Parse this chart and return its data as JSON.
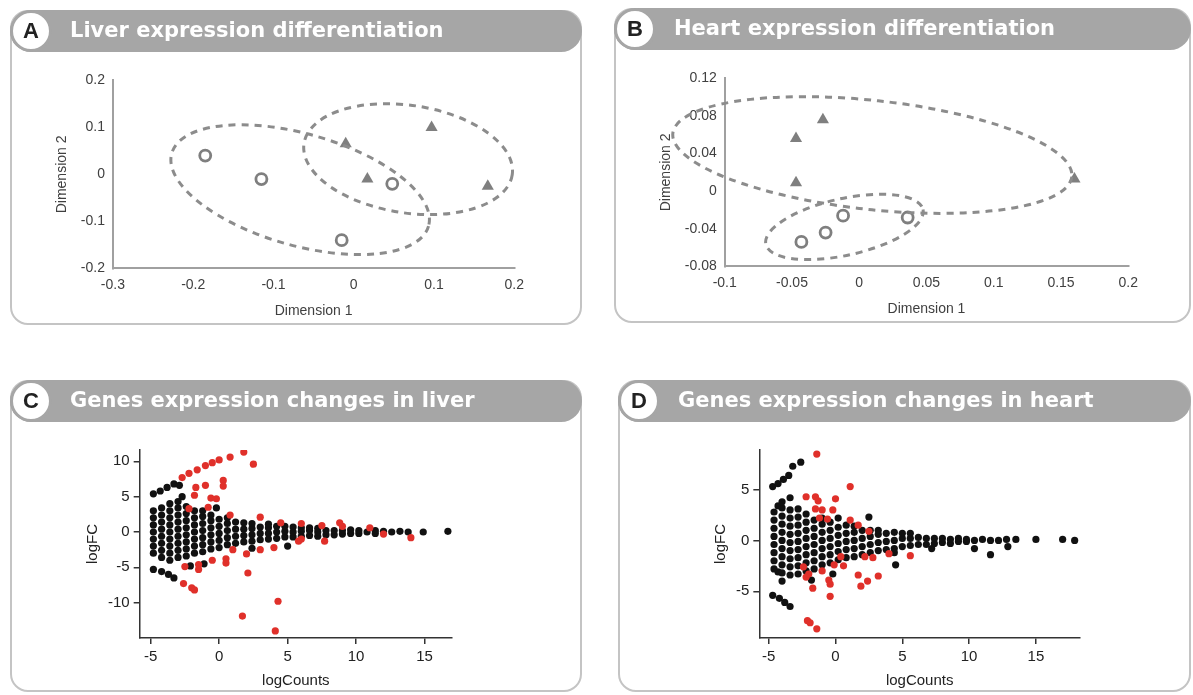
{
  "chart_data": [
    {
      "type": "scatter",
      "title": "Liver expression differentiation",
      "annotations": [
        "A"
      ],
      "xlabel": "Dimension 1",
      "ylabel": "Dimension 2",
      "xlim": [
        -0.3,
        0.2
      ],
      "xticks": [
        -0.3,
        -0.2,
        -0.1,
        0,
        0.1,
        0.2
      ],
      "ylim": [
        -0.2,
        0.2
      ],
      "yticks": [
        -0.2,
        -0.1,
        0,
        0.1,
        0.2
      ],
      "grid": false,
      "legend": false,
      "series": [
        {
          "color": "#7f7f7f",
          "marker": "circle",
          "x": [
            -0.185,
            -0.115,
            -0.015,
            0.048
          ],
          "values": [
            0.04,
            -0.01,
            -0.14,
            -0.02
          ]
        },
        {
          "color": "#7f7f7f",
          "marker": "triangle",
          "x": [
            -0.01,
            0.017,
            0.097,
            0.167
          ],
          "values": [
            0.065,
            -0.01,
            0.1,
            -0.025
          ]
        }
      ]
    },
    {
      "type": "scatter",
      "title": "Heart expression differentiation",
      "annotations": [
        "B"
      ],
      "xlabel": "Dimension 1",
      "ylabel": "Dimension 2",
      "xlim": [
        -0.1,
        0.2
      ],
      "xticks": [
        -0.1,
        -0.05,
        0,
        0.05,
        0.1,
        0.15,
        0.2
      ],
      "ylim": [
        -0.08,
        0.12
      ],
      "yticks": [
        -0.08,
        -0.04,
        0,
        0.04,
        0.08,
        0.12
      ],
      "grid": false,
      "legend": false,
      "series": [
        {
          "color": "#7f7f7f",
          "marker": "circle",
          "x": [
            -0.043,
            -0.025,
            -0.012,
            0.036
          ],
          "values": [
            -0.054,
            -0.044,
            -0.026,
            -0.028
          ]
        },
        {
          "color": "#7f7f7f",
          "marker": "triangle",
          "x": [
            -0.047,
            -0.047,
            -0.027,
            0.16
          ],
          "values": [
            0.056,
            0.009,
            0.076,
            0.013
          ]
        }
      ]
    },
    {
      "type": "scatter",
      "title": "Genes expression changes in liver",
      "annotations": [
        "C"
      ],
      "xlabel": "logCounts",
      "ylabel": "logFC",
      "xlim": [
        -5.8,
        17
      ],
      "xticks": [
        -5,
        0,
        5,
        10,
        15
      ],
      "ylim": [
        -15,
        11.6
      ],
      "yticks": [
        -10,
        -5,
        0,
        5,
        10
      ],
      "grid": false,
      "legend": false,
      "marker": "circle",
      "series": [
        {
          "color": "#111111",
          "x": [
            -4.8,
            -4.3,
            -3.8,
            -3.3,
            -2.9,
            -4.8,
            -4.2,
            -3.7,
            -3.3,
            -2.1,
            -1.1,
            -2.7,
            -4.8,
            -4.8,
            -4.8,
            -4.8,
            -4.8,
            -4.8,
            -4.8,
            -4.2,
            -4.2,
            -4.2,
            -4.2,
            -4.2,
            -4.2,
            -4.2,
            -4.2,
            -3.6,
            -3.6,
            -3.6,
            -3.6,
            -3.6,
            -3.6,
            -3.6,
            -3.6,
            -3.6,
            -3,
            -3,
            -3,
            -3,
            -3,
            -3,
            -3,
            -3,
            -3,
            -2.4,
            -2.4,
            -2.4,
            -2.4,
            -2.4,
            -2.4,
            -2.4,
            -2.4,
            -1.8,
            -1.8,
            -1.8,
            -1.8,
            -1.8,
            -1.8,
            -1.8,
            -1.2,
            -1.2,
            -1.2,
            -1.2,
            -1.2,
            -1.2,
            -1.2,
            -0.6,
            -0.6,
            -0.6,
            -0.6,
            -0.6,
            -0.6,
            0,
            0,
            0,
            0,
            0,
            -0.2,
            0.6,
            0.6,
            0.6,
            0.6,
            0.6,
            1.2,
            1.2,
            1.2,
            1.2,
            1.8,
            1.8,
            1.8,
            1.8,
            2.4,
            2.4,
            2.4,
            2.4,
            2.4,
            3,
            3,
            3,
            3.6,
            3.6,
            3.6,
            3.6,
            4.2,
            4.2,
            4.2,
            4.8,
            4.8,
            4.8,
            5,
            5.4,
            5.4,
            5.4,
            6,
            6,
            6,
            6.6,
            6.6,
            6.6,
            7.2,
            7.2,
            7.2,
            7.8,
            7.8,
            8.4,
            8.4,
            9,
            9,
            9.6,
            9.6,
            10.2,
            10.2,
            10.8,
            11.4,
            11.4,
            12,
            12.6,
            13.2,
            13.8,
            14.9,
            16.7
          ],
          "values": [
            5.4,
            5.8,
            6.3,
            6.8,
            6.6,
            -5.3,
            -5.6,
            -6,
            -6.5,
            -4.8,
            -4.5,
            5,
            -3,
            -2,
            -1,
            0,
            1,
            2,
            3,
            -3.6,
            -2.6,
            -1.6,
            -0.6,
            0.4,
            1.4,
            2.4,
            3.4,
            -4,
            -3,
            -2,
            -1,
            0,
            1,
            2,
            3,
            4,
            -3.6,
            -2.6,
            -1.6,
            -0.6,
            0.4,
            1.4,
            2.4,
            3.4,
            4.3,
            -3.4,
            -2.4,
            -1.4,
            -0.4,
            0.6,
            1.6,
            2.6,
            3.6,
            -3,
            -2,
            -1,
            0,
            1,
            2,
            3,
            -2.8,
            -1.8,
            -0.8,
            0.2,
            1.2,
            2.2,
            3,
            -2.4,
            -1.4,
            -0.4,
            0.6,
            1.6,
            2.4,
            -2.2,
            -1.2,
            -0.2,
            0.8,
            1.8,
            3.4,
            -1.8,
            -0.8,
            0.2,
            1.2,
            2,
            -1.6,
            -0.6,
            0.4,
            1.4,
            -1.4,
            -0.5,
            0.4,
            1.3,
            -1.3,
            -0.4,
            0.5,
            1.2,
            -2.3,
            -1.1,
            -0.2,
            0.7,
            -1,
            -0.2,
            0.6,
            1.1,
            -0.9,
            0,
            0.8,
            -0.7,
            0.1,
            0.8,
            -2,
            -0.7,
            0,
            0.7,
            -0.6,
            0.1,
            0.6,
            -0.5,
            0.2,
            0.6,
            -0.6,
            0,
            0.5,
            -0.4,
            0.2,
            -0.4,
            0.2,
            -0.3,
            0.2,
            -0.2,
            0.3,
            -0.2,
            0.2,
            0,
            -0.2,
            0.2,
            0.1,
            0,
            0.1,
            0,
            0,
            0.1
          ]
        },
        {
          "color": "#e0302a",
          "x": [
            -2.7,
            -2.2,
            -1.6,
            -1,
            -0.5,
            0,
            0.8,
            1.8,
            2.5,
            -1.7,
            -1,
            0.3,
            0.3,
            -0.6,
            -0.2,
            -1.8,
            -2.2,
            -0.8,
            0.8,
            3,
            4.5,
            6,
            7.5,
            9,
            8.8,
            11,
            14,
            12,
            6,
            4,
            3,
            1,
            0.5,
            0.5,
            -1.5,
            -1.5,
            -2.5,
            -2.6,
            -2,
            -1.8,
            2.1,
            4.3,
            1.7,
            4.1,
            -0.5,
            2,
            7.7,
            5.8
          ],
          "values": [
            7.7,
            8.3,
            8.8,
            9.4,
            9.8,
            10.2,
            10.6,
            11.3,
            9.6,
            6.3,
            6.6,
            7.3,
            6.5,
            4.8,
            4.7,
            5.2,
            3.3,
            3.5,
            2.4,
            2.1,
            1.3,
            1.2,
            0.9,
            0.8,
            1.3,
            0.6,
            -0.8,
            -0.3,
            -1,
            -2.2,
            -2.5,
            -2.5,
            -3.8,
            -4.4,
            -4.6,
            -5.3,
            -4.9,
            -7.3,
            -7.9,
            -8.2,
            -5.8,
            -9.8,
            -11.9,
            -14,
            -4,
            -3.1,
            -1.3,
            -1.3
          ]
        }
      ]
    },
    {
      "type": "scatter",
      "title": "Genes expression changes in heart",
      "annotations": [
        "D"
      ],
      "xlabel": "logCounts",
      "ylabel": "logFC",
      "xlim": [
        -5.7,
        18.3
      ],
      "xticks": [
        -5,
        0,
        5,
        10,
        15
      ],
      "ylim": [
        -9.6,
        8.9
      ],
      "yticks": [
        -5,
        0,
        5
      ],
      "grid": false,
      "legend": false,
      "marker": "circle",
      "series": [
        {
          "color": "#111111",
          "x": [
            -4.7,
            -4.3,
            -3.9,
            -3.5,
            -3.2,
            -2.6,
            -4.7,
            -4.2,
            -3.8,
            -3.4,
            -4.3,
            -4.3,
            -4,
            -1.8,
            -0.2,
            2.5,
            4.5,
            4.4,
            7.2,
            10.4,
            11.6,
            12.9,
            -4.6,
            -4.6,
            -4.6,
            -4.6,
            -4.6,
            -4.6,
            -4.6,
            -4.6,
            -4,
            -4,
            -4,
            -4,
            -4,
            -4,
            -4,
            -4,
            -4,
            -4,
            -3.4,
            -3.4,
            -3.4,
            -3.4,
            -3.4,
            -3.4,
            -3.4,
            -3.4,
            -3.4,
            -3.4,
            -2.8,
            -2.8,
            -2.8,
            -2.8,
            -2.8,
            -2.8,
            -2.8,
            -2.8,
            -2.8,
            -2.2,
            -2.2,
            -2.2,
            -2.2,
            -2.2,
            -2.2,
            -2.2,
            -2.2,
            -1.6,
            -1.6,
            -1.6,
            -1.6,
            -1.6,
            -1.6,
            -1.6,
            -1,
            -1,
            -1,
            -1,
            -1,
            -1,
            -1,
            -0.4,
            -0.4,
            -0.4,
            -0.4,
            -0.4,
            -0.4,
            0.2,
            0.2,
            0.2,
            0.2,
            0.2,
            0.2,
            0.8,
            0.8,
            0.8,
            0.8,
            0.8,
            1.4,
            1.4,
            1.4,
            1.4,
            1.4,
            2,
            2,
            2,
            2,
            2.6,
            2.6,
            2.6,
            2.6,
            3.2,
            3.2,
            3.2,
            3.2,
            3.8,
            3.8,
            3.8,
            4.4,
            4.4,
            4.4,
            5,
            5,
            5,
            5.6,
            5.6,
            5.6,
            6.2,
            6.2,
            6.8,
            6.8,
            7.4,
            7.4,
            8,
            8,
            8.6,
            8.6,
            9.2,
            9.2,
            9.8,
            9.8,
            10.4,
            11,
            11.6,
            12.2,
            12.8,
            13.5,
            15,
            17,
            17.9
          ],
          "values": [
            5.3,
            5.6,
            6,
            6.4,
            7.3,
            7.7,
            -5.4,
            -5.7,
            -6.1,
            -6.5,
            3.4,
            -3.1,
            -4,
            -3.9,
            -3.3,
            2.3,
            -2.4,
            -1.2,
            -0.8,
            -0.8,
            -1.4,
            -0.6,
            -2.8,
            -2,
            -1.2,
            -0.4,
            0.4,
            1.2,
            2,
            2.8,
            -3.2,
            -2.4,
            -1.6,
            -0.8,
            0,
            0.8,
            1.6,
            2.4,
            3.2,
            3.8,
            -3.4,
            -2.6,
            -1.8,
            -1,
            -0.2,
            0.6,
            1.4,
            2.2,
            3,
            4.2,
            -3.3,
            -2.5,
            -1.7,
            -0.9,
            -0.1,
            0.7,
            1.5,
            2.3,
            3.1,
            -3,
            -2.2,
            -1.4,
            -0.6,
            0.2,
            1,
            1.8,
            2.6,
            -2.8,
            -2,
            -1.2,
            -0.4,
            0.4,
            1.2,
            2,
            -2.4,
            -1.6,
            -0.8,
            0,
            0.8,
            1.6,
            2.2,
            -2.2,
            -1.4,
            -0.6,
            0.2,
            1,
            1.8,
            -1.9,
            -1.1,
            -0.3,
            0.5,
            1.3,
            2.2,
            -1.7,
            -0.9,
            -0.1,
            0.7,
            1.5,
            -1.6,
            -0.8,
            0,
            0.8,
            1.4,
            -1.4,
            -0.6,
            0.2,
            1,
            -1.2,
            -0.4,
            0.4,
            1,
            -1,
            -0.2,
            0.6,
            1,
            -0.9,
            -0.1,
            0.7,
            -0.8,
            0,
            0.8,
            -0.6,
            0.2,
            0.7,
            -0.5,
            0.2,
            0.7,
            -0.4,
            0.3,
            -0.4,
            0.2,
            -0.3,
            0.2,
            -0.2,
            0.2,
            -0.3,
            0.1,
            -0.1,
            0.2,
            -0.1,
            0.1,
            0,
            0.1,
            0,
            0,
            0.1,
            0.1,
            0.1,
            0.1,
            0
          ]
        },
        {
          "color": "#e0302a",
          "x": [
            -1.4,
            1.1,
            -2.2,
            -1.5,
            -1.3,
            -1.5,
            -1,
            -1.2,
            -0.6,
            0,
            -0.2,
            1.1,
            1.7,
            2.5,
            2.8,
            2.2,
            4,
            5.6,
            0.4,
            0.6,
            -0.1,
            1.7,
            2.4,
            1.9,
            3.2,
            -0.5,
            -0.4,
            -0.4,
            -1.7,
            -2.2,
            -2,
            -2.4,
            -2.1,
            -1.9,
            -1.4,
            -1
          ],
          "values": [
            8.5,
            5.3,
            4.3,
            4.3,
            3.9,
            3.1,
            3,
            2.2,
            2.1,
            4.1,
            3,
            2,
            1.5,
            0.9,
            -1.7,
            -1.6,
            -1.3,
            -1.5,
            -1.6,
            -2.5,
            -2.4,
            -3.4,
            -4,
            -4.5,
            -3.5,
            -3.9,
            -4.3,
            -5.5,
            -4.7,
            -3.6,
            -3.3,
            -2.6,
            -7.9,
            -8.1,
            -8.7,
            -3
          ]
        }
      ]
    }
  ]
}
